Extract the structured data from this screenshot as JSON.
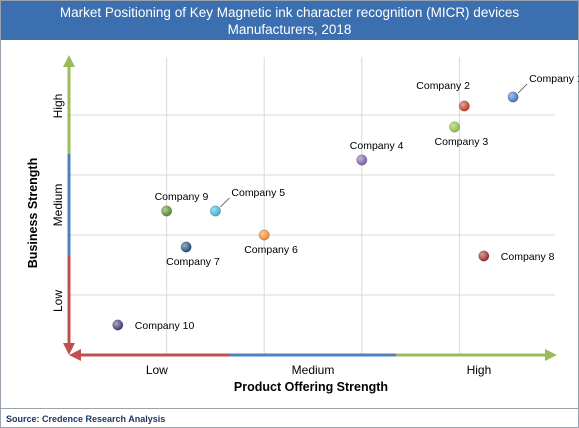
{
  "chart_data": {
    "type": "scatter",
    "title": "Market Positioning of Key Magnetic ink character recognition (MICR) devices\nManufacturers, 2018",
    "xlabel": "Product Offering Strength",
    "ylabel": "Business Strength",
    "x_levels": [
      "Low",
      "Medium",
      "High"
    ],
    "y_levels": [
      "Low",
      "Medium",
      "High"
    ],
    "xlim": [
      0,
      10
    ],
    "ylim": [
      0,
      10
    ],
    "grid": true,
    "points": [
      {
        "label": "Company 1",
        "x": 9.1,
        "y": 8.6,
        "color": "#3a78c2",
        "label_pos": "leader-right"
      },
      {
        "label": "Company 2",
        "x": 8.1,
        "y": 8.3,
        "color": "#c0392b",
        "label_pos": "above-left"
      },
      {
        "label": "Company 3",
        "x": 7.9,
        "y": 7.6,
        "color": "#8fbc45",
        "label_pos": "below-right"
      },
      {
        "label": "Company 4",
        "x": 6.0,
        "y": 6.5,
        "color": "#7b5ea7",
        "label_pos": "above-right"
      },
      {
        "label": "Company 5",
        "x": 3.0,
        "y": 4.8,
        "color": "#3eb1d8",
        "label_pos": "leader-right"
      },
      {
        "label": "Company 6",
        "x": 4.0,
        "y": 4.0,
        "color": "#ef8a2d",
        "label_pos": "below-right"
      },
      {
        "label": "Company 7",
        "x": 2.4,
        "y": 3.6,
        "color": "#1f4e79",
        "label_pos": "below-right"
      },
      {
        "label": "Company 8",
        "x": 8.5,
        "y": 3.3,
        "color": "#9b2d2d",
        "label_pos": "right"
      },
      {
        "label": "Company 9",
        "x": 2.0,
        "y": 4.8,
        "color": "#5c8a2e",
        "label_pos": "above-right"
      },
      {
        "label": "Company 10",
        "x": 1.0,
        "y": 1.0,
        "color": "#4b3a78",
        "label_pos": "right"
      }
    ]
  },
  "source": "Source: Credence Research Analysis",
  "colors": {
    "title_bar": "#3b6fb0",
    "arrow_red": "#c0504d",
    "arrow_blue": "#4f81bd",
    "arrow_green": "#9bbb59",
    "grid": "#d9d9d9"
  }
}
